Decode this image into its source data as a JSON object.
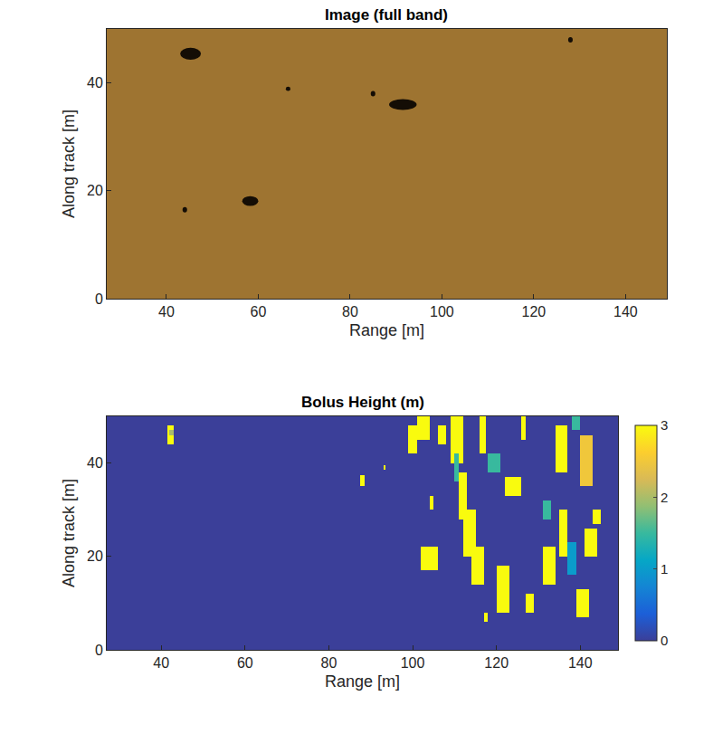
{
  "chart_data": [
    {
      "type": "image",
      "title": "Image (full band)",
      "x_label": "Range [m]",
      "y_label": "Along track [m]",
      "xlim": [
        27,
        149
      ],
      "ylim": [
        0,
        50
      ],
      "xticks": [
        40,
        60,
        80,
        100,
        120,
        140
      ],
      "yticks": [
        0,
        20,
        40
      ],
      "color": "#9e7431",
      "objects": [
        {
          "x": [
            43,
            47.5
          ],
          "y": [
            44.3,
            46.5
          ]
        },
        {
          "x": [
            88.5,
            94.5
          ],
          "y": [
            35,
            37
          ]
        },
        {
          "x": [
            56.5,
            60
          ],
          "y": [
            17.2,
            19
          ]
        },
        {
          "x": [
            84.5,
            85.5
          ],
          "y": [
            37.5,
            38.5
          ]
        },
        {
          "x": [
            43.5,
            44.5
          ],
          "y": [
            16,
            17
          ]
        },
        {
          "x": [
            127.5,
            128.5
          ],
          "y": [
            47.5,
            48.5
          ]
        },
        {
          "x": [
            66,
            67
          ],
          "y": [
            38.5,
            39.3
          ]
        }
      ]
    },
    {
      "type": "heatmap",
      "title": "Bolus Height (m)",
      "x_label": "Range [m]",
      "y_label": "Along track [m]",
      "xlim": [
        27,
        149
      ],
      "ylim": [
        0,
        50
      ],
      "xticks": [
        40,
        60,
        80,
        100,
        120,
        140
      ],
      "yticks": [
        0,
        20,
        40
      ],
      "background_value": 0,
      "colorbar_range": [
        0,
        3
      ],
      "colorbar_ticks": [
        0,
        1,
        2,
        3
      ],
      "patches": [
        {
          "x": [
            41.5,
            43
          ],
          "y": [
            44,
            48
          ],
          "value": 3
        },
        {
          "x": [
            42,
            43
          ],
          "y": [
            46,
            47
          ],
          "value": 2
        },
        {
          "x": [
            87.5,
            88.5
          ],
          "y": [
            35,
            37.5
          ],
          "value": 3
        },
        {
          "x": [
            93,
            93.5
          ],
          "y": [
            38.5,
            39.5
          ],
          "value": 3
        },
        {
          "x": [
            99,
            101
          ],
          "y": [
            42,
            48
          ],
          "value": 3
        },
        {
          "x": [
            101,
            104
          ],
          "y": [
            45,
            50
          ],
          "value": 3
        },
        {
          "x": [
            106,
            108
          ],
          "y": [
            44,
            48
          ],
          "value": 3
        },
        {
          "x": [
            109,
            112
          ],
          "y": [
            40,
            50
          ],
          "value": 3
        },
        {
          "x": [
            110,
            111
          ],
          "y": [
            36,
            42
          ],
          "value": 1.5
        },
        {
          "x": [
            111,
            113
          ],
          "y": [
            28,
            38
          ],
          "value": 3
        },
        {
          "x": [
            112,
            115
          ],
          "y": [
            20,
            30
          ],
          "value": 3
        },
        {
          "x": [
            114,
            117
          ],
          "y": [
            14,
            22
          ],
          "value": 3
        },
        {
          "x": [
            102,
            106
          ],
          "y": [
            17,
            22
          ],
          "value": 3
        },
        {
          "x": [
            104,
            105
          ],
          "y": [
            30,
            33
          ],
          "value": 3
        },
        {
          "x": [
            116,
            117.5
          ],
          "y": [
            42,
            50
          ],
          "value": 3
        },
        {
          "x": [
            118,
            121
          ],
          "y": [
            38,
            42
          ],
          "value": 1.5
        },
        {
          "x": [
            122,
            126
          ],
          "y": [
            33,
            37
          ],
          "value": 3
        },
        {
          "x": [
            120,
            123
          ],
          "y": [
            8,
            18
          ],
          "value": 3
        },
        {
          "x": [
            117,
            118
          ],
          "y": [
            6,
            8
          ],
          "value": 3
        },
        {
          "x": [
            127,
            129
          ],
          "y": [
            8,
            12
          ],
          "value": 3
        },
        {
          "x": [
            126,
            127
          ],
          "y": [
            45,
            50
          ],
          "value": 3
        },
        {
          "x": [
            131,
            134
          ],
          "y": [
            14,
            22
          ],
          "value": 3
        },
        {
          "x": [
            131,
            133
          ],
          "y": [
            28,
            32
          ],
          "value": 1.5
        },
        {
          "x": [
            134,
            137
          ],
          "y": [
            38,
            48
          ],
          "value": 3
        },
        {
          "x": [
            135,
            137
          ],
          "y": [
            20,
            30
          ],
          "value": 3
        },
        {
          "x": [
            137,
            139
          ],
          "y": [
            16,
            23
          ],
          "value": 1
        },
        {
          "x": [
            138,
            140
          ],
          "y": [
            47,
            50
          ],
          "value": 1.5
        },
        {
          "x": [
            140,
            143
          ],
          "y": [
            35,
            46
          ],
          "value": 2.5
        },
        {
          "x": [
            141,
            144
          ],
          "y": [
            20,
            26
          ],
          "value": 3
        },
        {
          "x": [
            143,
            145
          ],
          "y": [
            27,
            30
          ],
          "value": 3
        },
        {
          "x": [
            139,
            142
          ],
          "y": [
            7,
            13
          ],
          "value": 3
        }
      ]
    }
  ]
}
